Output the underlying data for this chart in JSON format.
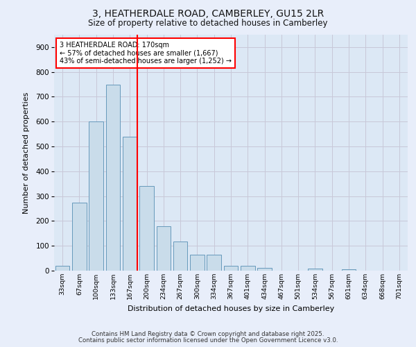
{
  "title_line1": "3, HEATHERDALE ROAD, CAMBERLEY, GU15 2LR",
  "title_line2": "Size of property relative to detached houses in Camberley",
  "xlabel": "Distribution of detached houses by size in Camberley",
  "ylabel": "Number of detached properties",
  "categories": [
    "33sqm",
    "67sqm",
    "100sqm",
    "133sqm",
    "167sqm",
    "200sqm",
    "234sqm",
    "267sqm",
    "300sqm",
    "334sqm",
    "367sqm",
    "401sqm",
    "434sqm",
    "467sqm",
    "501sqm",
    "534sqm",
    "567sqm",
    "601sqm",
    "634sqm",
    "668sqm",
    "701sqm"
  ],
  "values": [
    20,
    275,
    600,
    750,
    540,
    340,
    178,
    118,
    65,
    65,
    20,
    20,
    10,
    0,
    0,
    8,
    0,
    5,
    0,
    0,
    0
  ],
  "bar_color": "#c9dcea",
  "bar_edge_color": "#6699bb",
  "grid_color": "#c8c8d8",
  "background_color": "#dce8f5",
  "fig_background_color": "#e8eefa",
  "vline_color": "red",
  "vline_x": 4.43,
  "annotation_text": "3 HEATHERDALE ROAD: 170sqm\n← 57% of detached houses are smaller (1,667)\n43% of semi-detached houses are larger (1,252) →",
  "annotation_box_color": "white",
  "annotation_box_edge": "red",
  "ylim": [
    0,
    950
  ],
  "yticks": [
    0,
    100,
    200,
    300,
    400,
    500,
    600,
    700,
    800,
    900
  ],
  "footer_line1": "Contains HM Land Registry data © Crown copyright and database right 2025.",
  "footer_line2": "Contains public sector information licensed under the Open Government Licence v3.0."
}
